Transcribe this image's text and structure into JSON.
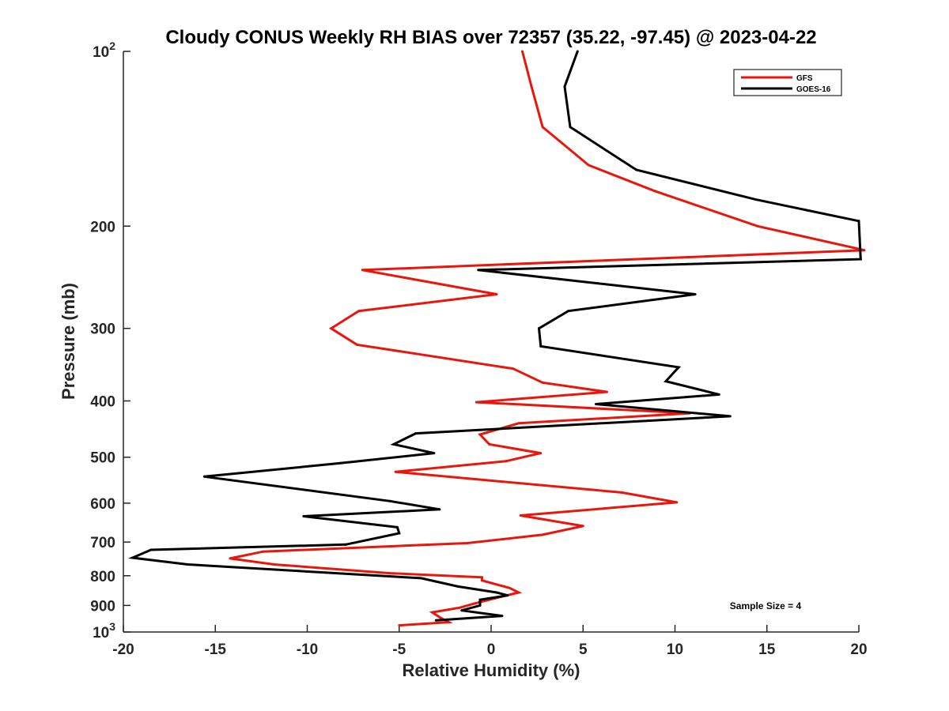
{
  "chart_data": {
    "type": "line",
    "title": "Cloudy CONUS Weekly RH BIAS over 72357 (35.22, -97.45) @ 2023-04-22",
    "xlabel": "Relative Humidity (%)",
    "ylabel": "Pressure (mb)",
    "xlim": [
      -20,
      20
    ],
    "ylim": [
      100,
      1000
    ],
    "y_scale": "log",
    "y_reversed": true,
    "grid": false,
    "legend_position": "top-right",
    "x_ticks": [
      "-20",
      "-15",
      "-10",
      "-5",
      "0",
      "5",
      "10",
      "15",
      "20"
    ],
    "y_ticks": [
      {
        "value": 100,
        "base": "10",
        "exp": "2"
      },
      {
        "value": 200,
        "label": "200"
      },
      {
        "value": 300,
        "label": "300"
      },
      {
        "value": 400,
        "label": "400"
      },
      {
        "value": 500,
        "label": "500"
      },
      {
        "value": 600,
        "label": "600"
      },
      {
        "value": 700,
        "label": "700"
      },
      {
        "value": 800,
        "label": "800"
      },
      {
        "value": 900,
        "label": "900"
      },
      {
        "value": 1000,
        "base": "10",
        "exp": "3"
      }
    ],
    "annotation": "Sample Size = 4",
    "series": [
      {
        "name": "GFS",
        "color": "#e8160c",
        "points": [
          [
            1.7,
            100
          ],
          [
            2.2,
            115
          ],
          [
            2.8,
            135
          ],
          [
            5.3,
            157
          ],
          [
            8.9,
            174
          ],
          [
            14.5,
            200
          ],
          [
            20.3,
            220
          ],
          [
            -7.0,
            238
          ],
          [
            0.3,
            262
          ],
          [
            -7.2,
            280
          ],
          [
            -8.7,
            300
          ],
          [
            -7.3,
            320
          ],
          [
            1.2,
            352
          ],
          [
            2.8,
            372
          ],
          [
            6.3,
            386
          ],
          [
            -0.8,
            402
          ],
          [
            10.8,
            420
          ],
          [
            1.5,
            437
          ],
          [
            -0.6,
            457
          ],
          [
            -0.1,
            475
          ],
          [
            2.7,
            492
          ],
          [
            0.8,
            508
          ],
          [
            -5.2,
            530
          ],
          [
            7.1,
            575
          ],
          [
            10.1,
            598
          ],
          [
            1.6,
            630
          ],
          [
            5.0,
            657
          ],
          [
            2.8,
            680
          ],
          [
            -1.3,
            703
          ],
          [
            -12.4,
            727
          ],
          [
            -14.2,
            747
          ],
          [
            -11.8,
            765
          ],
          [
            -5.5,
            792
          ],
          [
            -0.5,
            805
          ],
          [
            -0.5,
            815
          ],
          [
            1.0,
            840
          ],
          [
            1.5,
            855
          ],
          [
            0.2,
            875
          ],
          [
            -0.9,
            893
          ],
          [
            -1.7,
            908
          ],
          [
            -3.2,
            925
          ],
          [
            -2.8,
            943
          ],
          [
            -2.3,
            962
          ],
          [
            -5.0,
            974
          ]
        ]
      },
      {
        "name": "GOES-16",
        "color": "#000000",
        "points": [
          [
            4.7,
            100
          ],
          [
            4.0,
            115
          ],
          [
            4.3,
            135
          ],
          [
            7.9,
            160
          ],
          [
            14.4,
            180
          ],
          [
            20.0,
            196
          ],
          [
            20.1,
            228
          ],
          [
            -0.7,
            238
          ],
          [
            11.1,
            262
          ],
          [
            4.2,
            280
          ],
          [
            2.6,
            300
          ],
          [
            2.7,
            322
          ],
          [
            10.2,
            350
          ],
          [
            9.5,
            370
          ],
          [
            12.4,
            390
          ],
          [
            5.7,
            405
          ],
          [
            13.0,
            425
          ],
          [
            -4.1,
            455
          ],
          [
            -5.3,
            475
          ],
          [
            -3.1,
            492
          ],
          [
            -8.2,
            512
          ],
          [
            -15.6,
            540
          ],
          [
            -5.5,
            595
          ],
          [
            -2.8,
            615
          ],
          [
            -10.2,
            632
          ],
          [
            -5.1,
            660
          ],
          [
            -5.0,
            676
          ],
          [
            -7.9,
            707
          ],
          [
            -18.5,
            722
          ],
          [
            -19.5,
            745
          ],
          [
            -16.5,
            765
          ],
          [
            -3.8,
            808
          ],
          [
            -1.8,
            835
          ],
          [
            0.3,
            855
          ],
          [
            0.9,
            865
          ],
          [
            -0.6,
            880
          ],
          [
            -0.6,
            900
          ],
          [
            -1.6,
            918
          ],
          [
            0.6,
            938
          ],
          [
            -3.0,
            955
          ]
        ]
      }
    ]
  }
}
